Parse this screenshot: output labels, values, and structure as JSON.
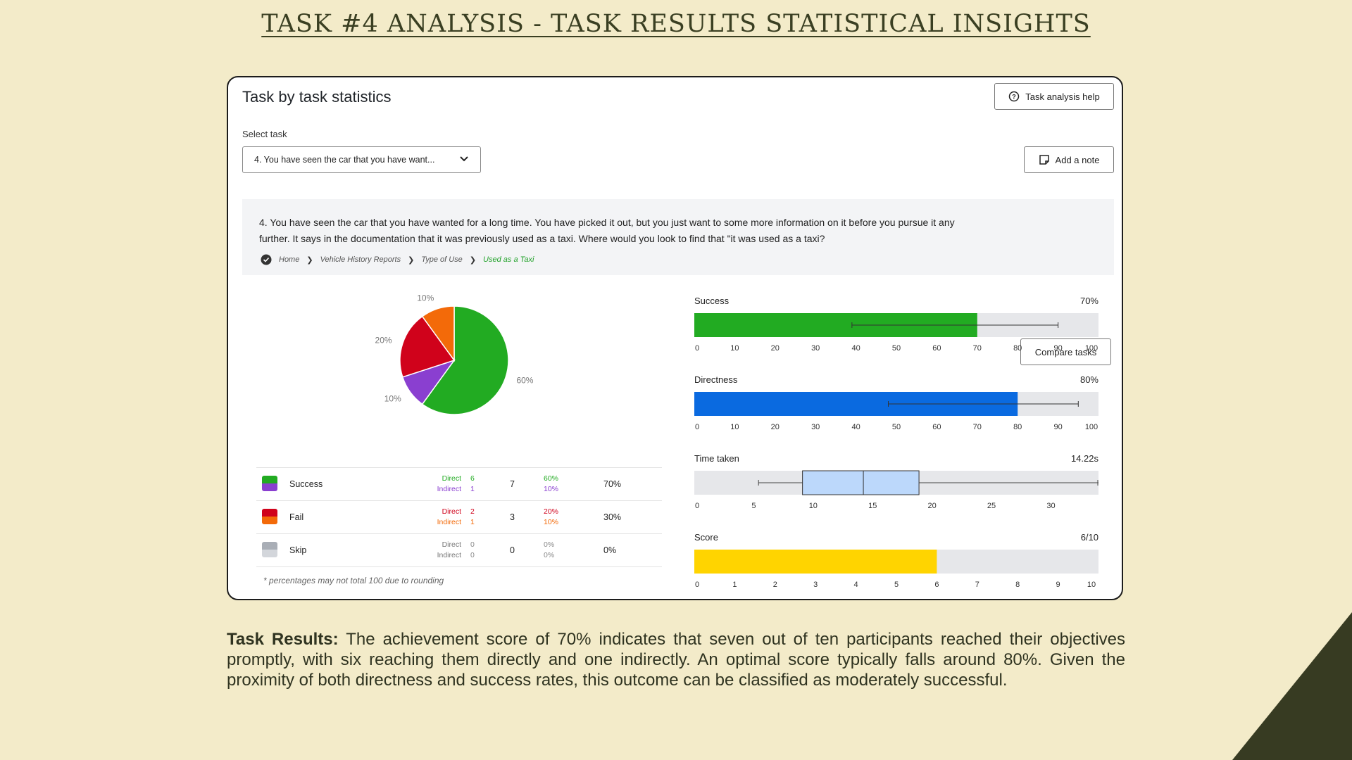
{
  "page_title": "Task #4 Analysis - Task Results Statistical Insights",
  "panel": {
    "title": "Task by task statistics",
    "help_button": "Task analysis help",
    "select_label": "Select task",
    "selected_task": "4. You have seen the car that you have want...",
    "add_note_button": "Add a note",
    "compare_button": "Compare tasks",
    "task_text": "4. You have seen the car that you have wanted for a long time. You have picked it out, but you just want to some more information on it before you pursue it any further. It says in the documentation that it was previously used as a taxi. Where would you look to find that \"it was used as a taxi?",
    "breadcrumbs": [
      "Home",
      "Vehicle History Reports",
      "Type of Use",
      "Used as a Taxi"
    ]
  },
  "chart_data": [
    {
      "type": "pie",
      "slices": [
        {
          "label": "60%",
          "value": 60,
          "color": "#22ab22"
        },
        {
          "label": "10%",
          "value": 10,
          "color": "#8a3fd0"
        },
        {
          "label": "20%",
          "value": 20,
          "color": "#d0021b"
        },
        {
          "label": "10%",
          "value": 10,
          "color": "#f36a09"
        }
      ]
    },
    {
      "type": "bar",
      "title": "Success",
      "value_label": "70%",
      "value": 70,
      "error_range": [
        39,
        90
      ],
      "xlim": [
        0,
        100
      ],
      "ticks": [
        0,
        10,
        20,
        30,
        40,
        50,
        60,
        70,
        80,
        90,
        100
      ],
      "color": "#22ab22"
    },
    {
      "type": "bar",
      "title": "Directness",
      "value_label": "80%",
      "value": 80,
      "error_range": [
        48,
        95
      ],
      "xlim": [
        0,
        100
      ],
      "ticks": [
        0,
        10,
        20,
        30,
        40,
        50,
        60,
        70,
        80,
        90,
        100
      ],
      "color": "#0a6ae0"
    },
    {
      "type": "boxplot",
      "title": "Time taken",
      "value_label": "14.22s",
      "whisker_low": 5.4,
      "q1": 9.1,
      "median": 14.22,
      "q3": 18.9,
      "whisker_high": 34,
      "xlim": [
        0,
        34
      ],
      "ticks": [
        0,
        5,
        10,
        15,
        20,
        25,
        30
      ],
      "color": "#bcd8fb"
    },
    {
      "type": "bar",
      "title": "Score",
      "value_label": "6/10",
      "value": 6,
      "xlim": [
        0,
        10
      ],
      "ticks": [
        0,
        1,
        2,
        3,
        4,
        5,
        6,
        7,
        8,
        9,
        10
      ],
      "color": "#ffd400"
    }
  ],
  "legend": [
    {
      "name": "Success",
      "types": [
        "Direct",
        "Indirect"
      ],
      "counts": [
        "6",
        "1"
      ],
      "total": "7",
      "pcts": [
        "60%",
        "10%"
      ],
      "overall": "70%",
      "colors": [
        "#22ab22",
        "#8a3fd0"
      ]
    },
    {
      "name": "Fail",
      "types": [
        "Direct",
        "Indirect"
      ],
      "counts": [
        "2",
        "1"
      ],
      "total": "3",
      "pcts": [
        "20%",
        "10%"
      ],
      "overall": "30%",
      "colors": [
        "#d0021b",
        "#f36a09"
      ]
    },
    {
      "name": "Skip",
      "types": [
        "Direct",
        "Indirect"
      ],
      "counts": [
        "0",
        "0"
      ],
      "total": "0",
      "pcts": [
        "0%",
        "0%"
      ],
      "overall": "0%",
      "colors": [
        "#a9aeb6",
        "#d3d6db"
      ]
    }
  ],
  "footnote": "* percentages may not total 100 due to rounding",
  "summary": {
    "label": "Task Results:",
    "text": " The achievement score of 70% indicates that seven out of ten participants reached their objectives promptly, with six reaching them directly and one indirectly. An optimal score typically falls around 80%. Given the proximity of both directness and success rates, this outcome can be classified as moderately successful."
  },
  "colors": {
    "background": "#f3ebc9",
    "corner": "#373b22",
    "title": "#3a3f22"
  }
}
